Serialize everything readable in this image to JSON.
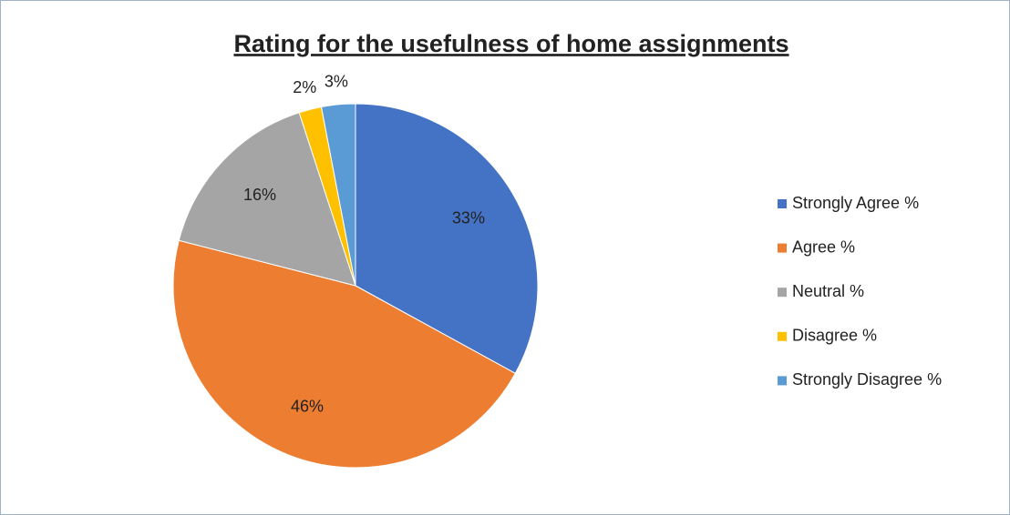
{
  "chart_data": {
    "type": "pie",
    "title": "Rating for the usefulness of home assignments",
    "categories": [
      "Strongly Agree %",
      "Agree %",
      "Neutral %",
      "Disagree %",
      "Strongly Disagree %"
    ],
    "values": [
      33,
      46,
      16,
      2,
      3
    ],
    "value_labels": [
      "33%",
      "46%",
      "16%",
      "2%",
      "3%"
    ],
    "colors": [
      "#4472c4",
      "#ed7d31",
      "#a5a5a5",
      "#ffc000",
      "#5b9bd5"
    ],
    "legend": "right"
  }
}
